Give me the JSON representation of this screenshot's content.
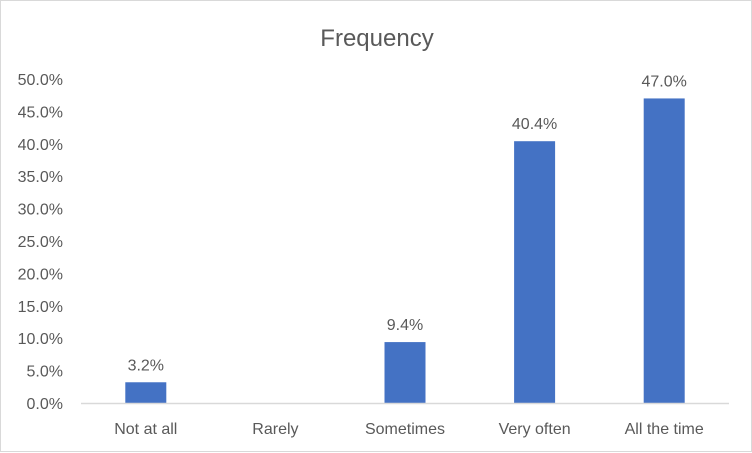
{
  "chart_data": {
    "type": "bar",
    "title": "Frequency",
    "xlabel": "",
    "ylabel": "",
    "categories": [
      "Not at all",
      "Rarely",
      "Sometimes",
      "Very often",
      "All the time"
    ],
    "values": [
      3.2,
      null,
      9.4,
      40.4,
      47.0
    ],
    "data_labels": [
      "3.2%",
      "",
      "9.4%",
      "40.4%",
      "47.0%"
    ],
    "ylim": [
      0,
      50
    ],
    "yticks": [
      0,
      5,
      10,
      15,
      20,
      25,
      30,
      35,
      40,
      45,
      50
    ],
    "ytick_labels": [
      "0.0%",
      "5.0%",
      "10.0%",
      "15.0%",
      "20.0%",
      "25.0%",
      "30.0%",
      "35.0%",
      "40.0%",
      "45.0%",
      "50.0%"
    ],
    "grid": false,
    "legend": "none",
    "bar_color": "#4472c4",
    "axis_color": "#d9d9d9"
  }
}
